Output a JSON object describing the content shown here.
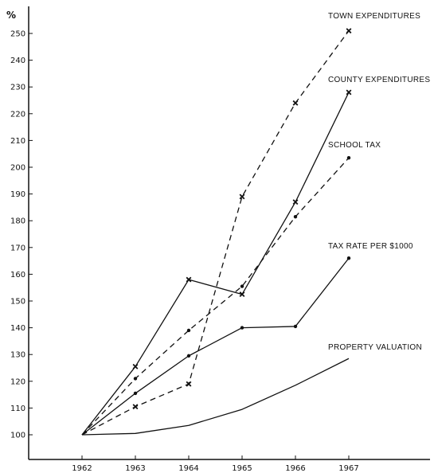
{
  "chart_data": {
    "type": "line",
    "x": [
      1962,
      1963,
      1964,
      1965,
      1966,
      1967
    ],
    "x_tick_labels": [
      "1962",
      "1963",
      "1964",
      "1965",
      "1966",
      "1967"
    ],
    "y_tick_labels": [
      "100",
      "110",
      "120",
      "130",
      "140",
      "150",
      "160",
      "170",
      "180",
      "190",
      "200",
      "210",
      "220",
      "230",
      "240",
      "250"
    ],
    "ylabel": "%",
    "ylim": [
      93,
      256
    ],
    "grid": false,
    "series": [
      {
        "name": "TOWN EXPENDITURES",
        "style": "dashed",
        "marker": "x",
        "values": [
          100,
          110.5,
          119,
          189,
          224,
          251
        ]
      },
      {
        "name": "COUNTY EXPENDITURES",
        "style": "solid",
        "marker": "x",
        "values": [
          100,
          125.5,
          158,
          152.5,
          187,
          228
        ]
      },
      {
        "name": "SCHOOL TAX",
        "style": "dashed",
        "marker": "dot",
        "values": [
          100,
          121,
          139,
          155.5,
          181.5,
          203.5
        ]
      },
      {
        "name": "TAX RATE PER $1000",
        "style": "solid",
        "marker": "dot",
        "values": [
          100,
          115.5,
          129.5,
          140,
          140.5,
          166
        ]
      },
      {
        "name": "PROPERTY VALUATION",
        "style": "solid",
        "marker": "none",
        "values": [
          100,
          100.5,
          103.5,
          109.5,
          118.5,
          128.5
        ]
      }
    ]
  }
}
